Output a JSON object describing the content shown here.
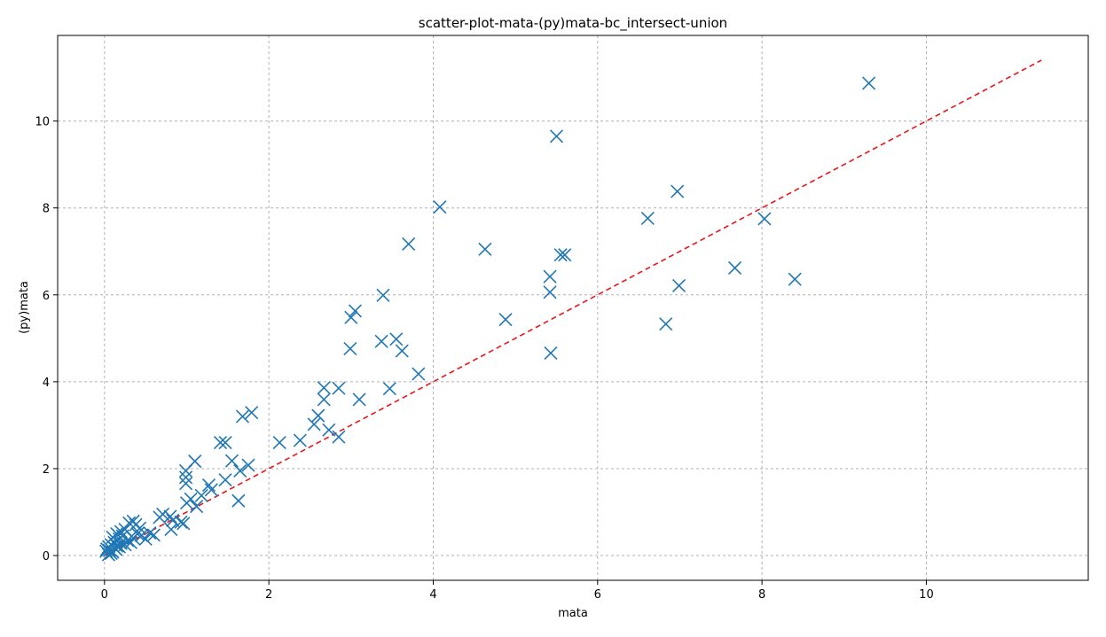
{
  "chart_data": {
    "type": "scatter",
    "title": "scatter-plot-mata-(py)mata-bc_intersect-union",
    "xlabel": "mata",
    "ylabel": "(py)mata",
    "xlim": [
      -0.57,
      11.97
    ],
    "ylim": [
      -0.57,
      11.97
    ],
    "xticks": [
      0,
      2,
      4,
      6,
      8,
      10
    ],
    "yticks": [
      0,
      2,
      4,
      6,
      8,
      10
    ],
    "grid": true,
    "marker": "x",
    "marker_color": "#1f77b4",
    "reference_line": {
      "x": [
        0,
        11.4
      ],
      "y": [
        0,
        11.4
      ],
      "style": "dashed",
      "color": "#e8161b"
    },
    "points": [
      [
        9.3,
        10.87
      ],
      [
        5.5,
        9.65
      ],
      [
        4.08,
        8.02
      ],
      [
        6.97,
        8.38
      ],
      [
        6.61,
        7.76
      ],
      [
        8.03,
        7.75
      ],
      [
        3.7,
        7.17
      ],
      [
        4.63,
        7.05
      ],
      [
        5.55,
        6.92
      ],
      [
        5.6,
        6.92
      ],
      [
        5.42,
        6.42
      ],
      [
        5.42,
        6.06
      ],
      [
        7.67,
        6.62
      ],
      [
        8.4,
        6.36
      ],
      [
        6.99,
        6.21
      ],
      [
        3.39,
        5.99
      ],
      [
        3.05,
        5.63
      ],
      [
        3.0,
        5.48
      ],
      [
        4.88,
        5.43
      ],
      [
        6.83,
        5.33
      ],
      [
        3.37,
        4.93
      ],
      [
        3.55,
        4.98
      ],
      [
        2.99,
        4.76
      ],
      [
        3.62,
        4.71
      ],
      [
        5.43,
        4.66
      ],
      [
        3.82,
        4.18
      ],
      [
        2.67,
        3.86
      ],
      [
        2.85,
        3.85
      ],
      [
        3.47,
        3.84
      ],
      [
        2.67,
        3.59
      ],
      [
        3.1,
        3.59
      ],
      [
        1.68,
        3.2
      ],
      [
        1.79,
        3.29
      ],
      [
        2.6,
        3.22
      ],
      [
        2.55,
        3.02
      ],
      [
        2.73,
        2.89
      ],
      [
        2.85,
        2.73
      ],
      [
        2.13,
        2.6
      ],
      [
        2.38,
        2.65
      ],
      [
        1.41,
        2.6
      ],
      [
        1.47,
        2.6
      ],
      [
        1.1,
        2.17
      ],
      [
        1.55,
        2.18
      ],
      [
        1.75,
        2.08
      ],
      [
        1.65,
        1.95
      ],
      [
        0.99,
        1.95
      ],
      [
        0.99,
        1.8
      ],
      [
        1.27,
        1.62
      ],
      [
        1.47,
        1.74
      ],
      [
        0.99,
        1.66
      ],
      [
        1.3,
        1.51
      ],
      [
        1.18,
        1.38
      ],
      [
        1.05,
        1.3
      ],
      [
        1.0,
        1.21
      ],
      [
        1.12,
        1.13
      ],
      [
        1.63,
        1.26
      ],
      [
        0.71,
        0.95
      ],
      [
        0.8,
        0.9
      ],
      [
        0.67,
        0.88
      ],
      [
        0.83,
        0.81
      ],
      [
        0.93,
        0.77
      ],
      [
        0.96,
        0.74
      ],
      [
        0.81,
        0.6
      ],
      [
        0.35,
        0.79
      ],
      [
        0.3,
        0.75
      ],
      [
        0.38,
        0.71
      ],
      [
        0.43,
        0.63
      ],
      [
        0.55,
        0.52
      ],
      [
        0.5,
        0.38
      ],
      [
        0.45,
        0.46
      ],
      [
        0.6,
        0.47
      ],
      [
        0.25,
        0.6
      ],
      [
        0.2,
        0.55
      ],
      [
        0.15,
        0.5
      ],
      [
        0.22,
        0.45
      ],
      [
        0.1,
        0.42
      ],
      [
        0.18,
        0.38
      ],
      [
        0.28,
        0.35
      ],
      [
        0.12,
        0.3
      ],
      [
        0.08,
        0.25
      ],
      [
        0.05,
        0.2
      ],
      [
        0.15,
        0.22
      ],
      [
        0.25,
        0.25
      ],
      [
        0.32,
        0.3
      ],
      [
        0.03,
        0.15
      ],
      [
        0.02,
        0.1
      ],
      [
        0.06,
        0.12
      ],
      [
        0.1,
        0.08
      ],
      [
        0.14,
        0.14
      ],
      [
        0.18,
        0.2
      ],
      [
        0.08,
        0.05
      ],
      [
        0.05,
        0.02
      ],
      [
        0.12,
        0.18
      ],
      [
        0.2,
        0.28
      ],
      [
        0.4,
        0.5
      ],
      [
        0.35,
        0.4
      ]
    ]
  }
}
